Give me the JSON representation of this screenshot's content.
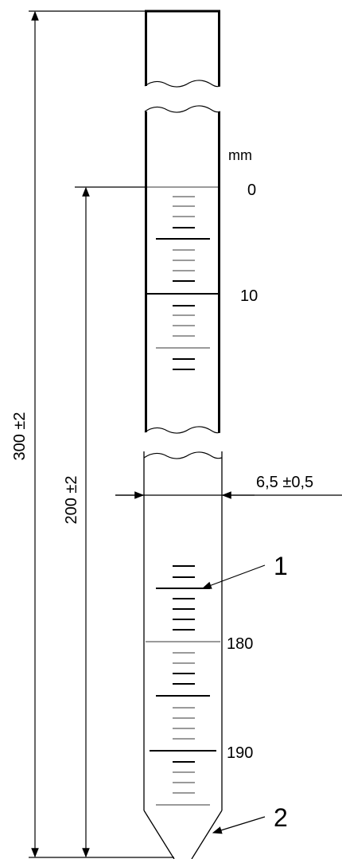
{
  "unit_label": "mm",
  "scale_labels": {
    "top_zero": "0",
    "top_ten": "10",
    "bottom_180": "180",
    "bottom_190": "190"
  },
  "dimensions": {
    "overall_length": "300 ±2",
    "graduated_length": "200 ±2",
    "inner_diameter": "6,5 ±0,5"
  },
  "callouts": {
    "graduation_marks": "1",
    "tip": "2"
  }
}
